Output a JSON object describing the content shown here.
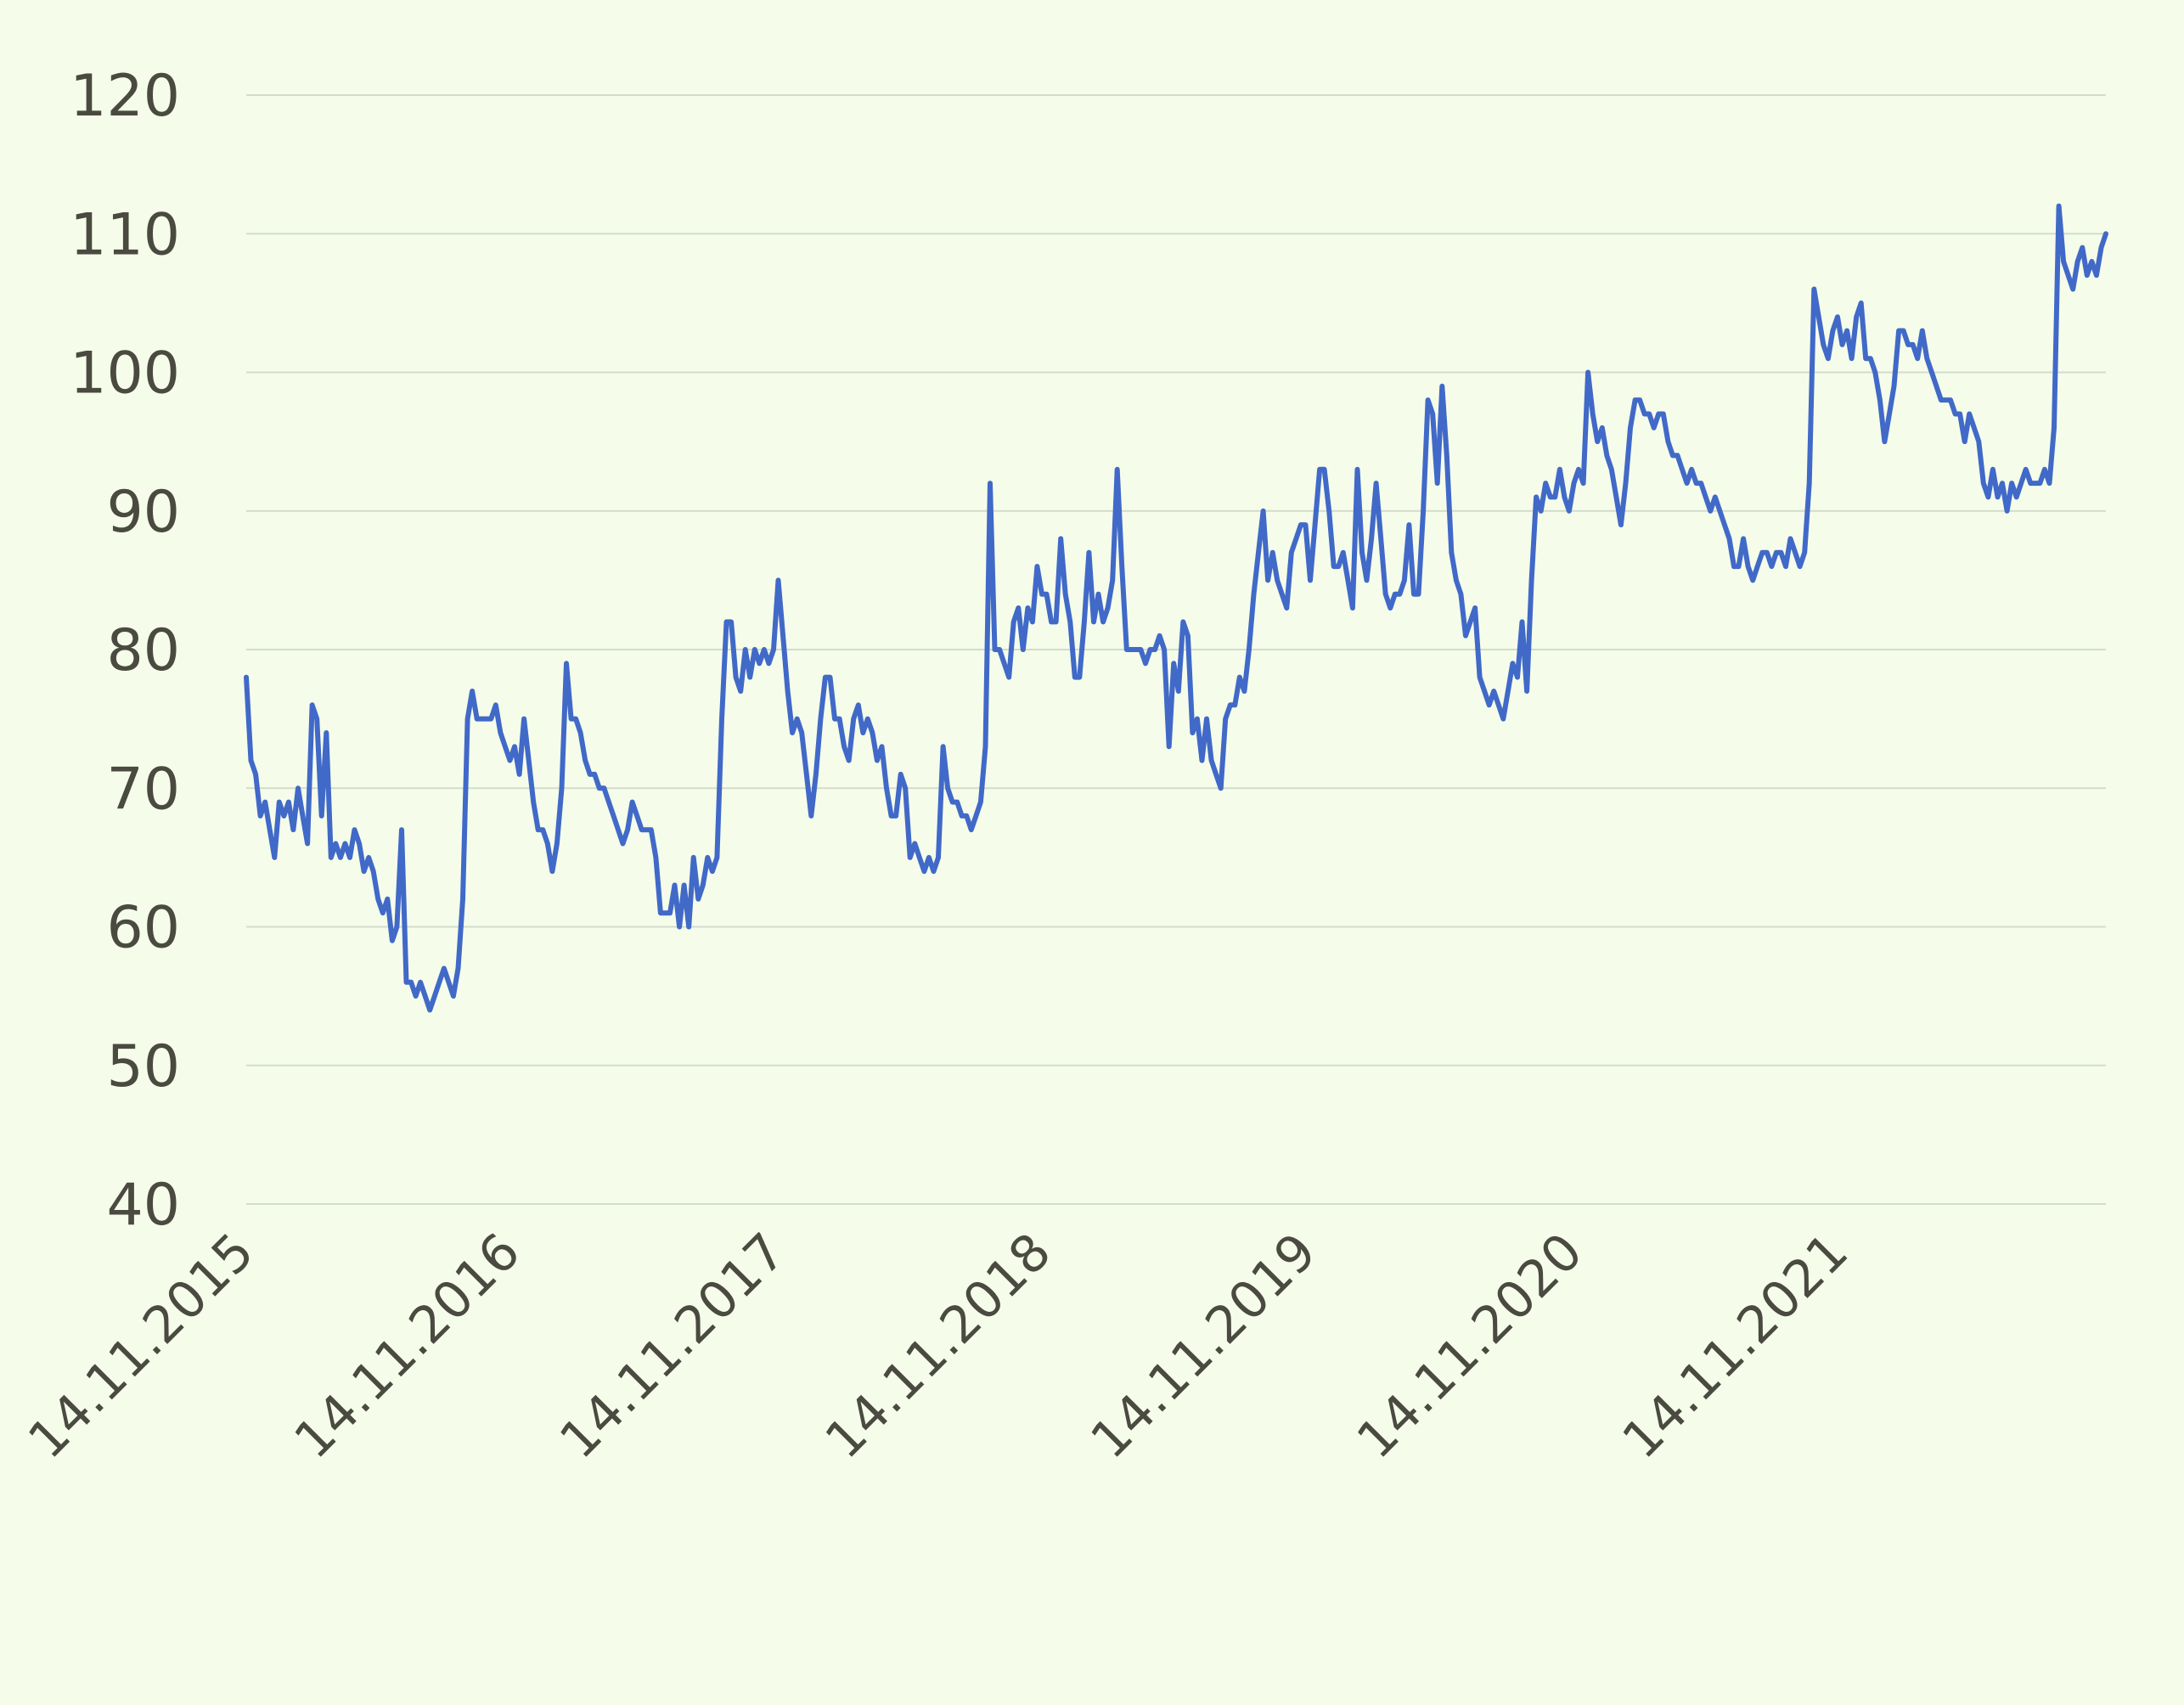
{
  "chart_data": {
    "type": "line",
    "title": "",
    "xlabel": "",
    "ylabel": "",
    "ylim": [
      40,
      120
    ],
    "y_ticks": [
      "40",
      "50",
      "60",
      "70",
      "80",
      "90",
      "100",
      "110",
      "120"
    ],
    "grid": "horizontal",
    "legend": "none",
    "colors": {
      "line": "#4169c8",
      "grid": "#d2dccd",
      "background": "#f5fdea",
      "tick_text": "#4a4a40"
    },
    "x_tick_labels": [
      "14.11.2015",
      "14.11.2016",
      "14.11.2017",
      "14.11.2018",
      "14.11.2019",
      "14.11.2020",
      "14.11.2021"
    ],
    "x_start": "14.11.2015",
    "x_end": "14.11.2022",
    "series": [
      {
        "values": [
          78,
          72,
          71,
          68,
          69,
          67,
          65,
          69,
          68,
          69,
          67,
          70,
          68,
          66,
          76,
          75,
          68,
          74,
          65,
          66,
          65,
          66,
          65,
          67,
          66,
          64,
          65,
          64,
          62,
          61,
          62,
          59,
          60,
          67,
          56,
          56,
          55,
          56,
          55,
          54,
          55,
          56,
          57,
          56,
          55,
          57,
          62,
          75,
          77,
          75,
          75,
          75,
          75,
          76,
          74,
          73,
          72,
          73,
          71,
          75,
          72,
          69,
          67,
          67,
          66,
          64,
          66,
          70,
          79,
          75,
          75,
          74,
          72,
          71,
          71,
          70,
          70,
          69,
          68,
          67,
          66,
          67,
          69,
          68,
          67,
          67,
          67,
          65,
          61,
          61,
          61,
          63,
          60,
          63,
          60,
          65,
          62,
          63,
          65,
          64,
          65,
          75,
          82,
          82,
          78,
          77,
          80,
          78,
          80,
          79,
          80,
          79,
          80,
          85,
          81,
          77,
          74,
          75,
          74,
          71,
          68,
          71,
          75,
          78,
          78,
          75,
          75,
          73,
          72,
          75,
          76,
          74,
          75,
          74,
          72,
          73,
          70,
          68,
          68,
          71,
          70,
          65,
          66,
          65,
          64,
          65,
          64,
          65,
          73,
          70,
          69,
          69,
          68,
          68,
          67,
          68,
          69,
          73,
          92,
          80,
          80,
          79,
          78,
          82,
          83,
          80,
          83,
          82,
          86,
          84,
          84,
          82,
          82,
          88,
          84,
          82,
          78,
          78,
          82,
          87,
          82,
          84,
          82,
          83,
          85,
          93,
          86,
          80,
          80,
          80,
          80,
          79,
          80,
          80,
          81,
          80,
          73,
          79,
          77,
          82,
          81,
          74,
          75,
          72,
          75,
          72,
          71,
          70,
          75,
          76,
          76,
          78,
          77,
          80,
          84,
          87,
          90,
          85,
          87,
          85,
          84,
          83,
          87,
          88,
          89,
          89,
          85,
          89,
          93,
          93,
          90,
          86,
          86,
          87,
          85,
          83,
          93,
          87,
          85,
          88,
          92,
          88,
          84,
          83,
          84,
          84,
          85,
          89,
          84,
          84,
          90,
          98,
          97,
          92,
          99,
          94,
          87,
          85,
          84,
          81,
          82,
          83,
          78,
          77,
          76,
          77,
          76,
          75,
          77,
          79,
          78,
          82,
          77,
          85,
          91,
          90,
          92,
          91,
          91,
          93,
          91,
          90,
          92,
          93,
          92,
          100,
          97,
          95,
          96,
          94,
          93,
          91,
          89,
          92,
          96,
          98,
          98,
          97,
          97,
          96,
          97,
          97,
          95,
          94,
          94,
          93,
          92,
          93,
          92,
          92,
          91,
          90,
          91,
          90,
          89,
          88,
          86,
          86,
          88,
          86,
          85,
          86,
          87,
          87,
          86,
          87,
          87,
          86,
          88,
          87,
          86,
          87,
          92,
          106,
          104,
          102,
          101,
          103,
          104,
          102,
          103,
          101,
          104,
          105,
          101,
          101,
          100,
          98,
          95,
          97,
          99,
          103,
          103,
          102,
          102,
          101,
          103,
          101,
          100,
          99,
          98,
          98,
          98,
          97,
          97,
          95,
          97,
          96,
          95,
          92,
          91,
          93,
          91,
          92,
          90,
          92,
          91,
          92,
          93,
          92,
          92,
          92,
          93,
          92,
          96,
          112,
          108,
          107,
          106,
          108,
          109,
          107,
          108,
          107,
          109,
          110
        ]
      }
    ]
  }
}
